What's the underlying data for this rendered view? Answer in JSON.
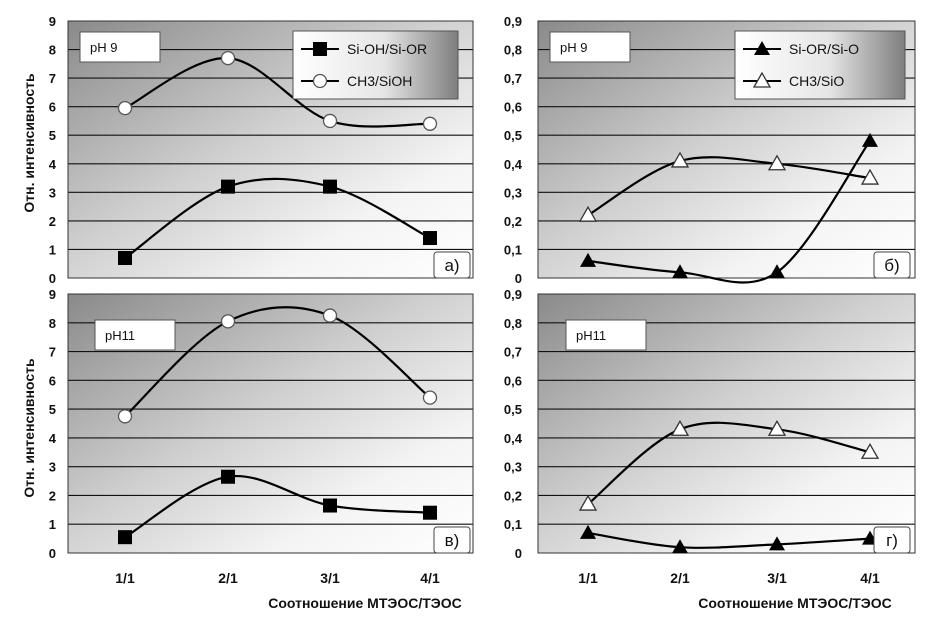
{
  "figure": {
    "ylabel": "Отн. интенсивность",
    "xlabel": "Соотношение МТЭОС/ТЭОС",
    "categories": [
      "1/1",
      "2/1",
      "3/1",
      "4/1"
    ]
  },
  "chart_data": [
    {
      "type": "line",
      "panel_label": "а)",
      "tag": "pH 9",
      "categories": [
        "1/1",
        "2/1",
        "3/1",
        "4/1"
      ],
      "ylim": [
        0,
        9
      ],
      "yticks": [
        "0",
        "1",
        "2",
        "3",
        "4",
        "5",
        "6",
        "7",
        "8",
        "9"
      ],
      "grid": true,
      "legend": "top-right",
      "series": [
        {
          "name": "Si-OH/Si-OR",
          "marker": "filled-square",
          "values": [
            0.7,
            3.2,
            3.2,
            1.4
          ]
        },
        {
          "name": "CH3/SiOH",
          "marker": "open-circle",
          "values": [
            5.95,
            7.7,
            5.5,
            5.4
          ]
        }
      ]
    },
    {
      "type": "line",
      "panel_label": "б)",
      "tag": "pH 9",
      "categories": [
        "1/1",
        "2/1",
        "3/1",
        "4/1"
      ],
      "ylim": [
        0,
        0.9
      ],
      "yticks": [
        "0",
        "0,1",
        "0,2",
        "0,3",
        "0,4",
        "0,5",
        "0,6",
        "0,7",
        "0,8",
        "0,9"
      ],
      "grid": true,
      "legend": "top-right",
      "series": [
        {
          "name": "Si-OR/Si-O",
          "marker": "filled-triangle",
          "values": [
            0.06,
            0.02,
            0.02,
            0.48
          ]
        },
        {
          "name": "CH3/SiO",
          "marker": "open-triangle",
          "values": [
            0.22,
            0.41,
            0.4,
            0.35
          ]
        }
      ]
    },
    {
      "type": "line",
      "panel_label": "в)",
      "tag": "pH11",
      "categories": [
        "1/1",
        "2/1",
        "3/1",
        "4/1"
      ],
      "ylim": [
        0,
        9
      ],
      "yticks": [
        "0",
        "1",
        "2",
        "3",
        "4",
        "5",
        "6",
        "7",
        "8",
        "9"
      ],
      "grid": true,
      "legend": "none",
      "series": [
        {
          "marker": "filled-square",
          "values": [
            0.55,
            2.65,
            1.65,
            1.4
          ]
        },
        {
          "marker": "open-circle",
          "values": [
            4.75,
            8.05,
            8.25,
            5.4
          ]
        }
      ]
    },
    {
      "type": "line",
      "panel_label": "г)",
      "tag": "pH11",
      "categories": [
        "1/1",
        "2/1",
        "3/1",
        "4/1"
      ],
      "ylim": [
        0,
        0.9
      ],
      "yticks": [
        "0",
        "0,1",
        "0,2",
        "0,3",
        "0,4",
        "0,5",
        "0,6",
        "0,7",
        "0,8",
        "0,9"
      ],
      "grid": true,
      "legend": "none",
      "series": [
        {
          "marker": "filled-triangle",
          "values": [
            0.07,
            0.02,
            0.03,
            0.05
          ]
        },
        {
          "marker": "open-triangle",
          "values": [
            0.17,
            0.43,
            0.43,
            0.35
          ]
        }
      ]
    }
  ]
}
